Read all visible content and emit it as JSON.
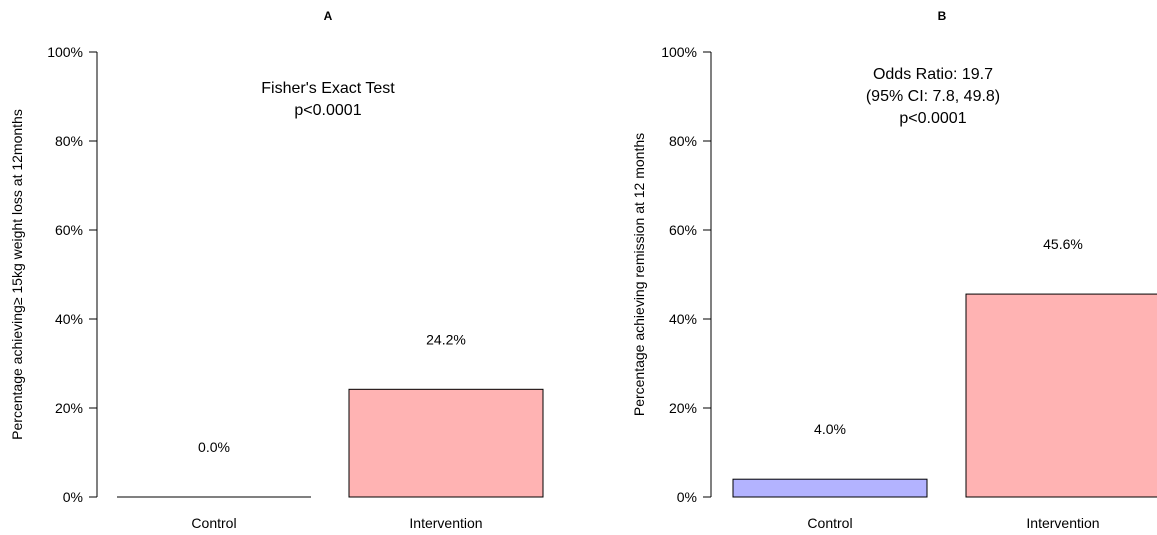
{
  "chart_data": [
    {
      "type": "bar",
      "title": "A",
      "xlabel": "",
      "ylabel": "Percentage achieving≥ 15kg weight loss at 12months",
      "categories": [
        "Control",
        "Intervention"
      ],
      "values": [
        0.0,
        24.2
      ],
      "value_labels": [
        "0.0%",
        "24.2%"
      ],
      "colors": [
        "#b3b3ff",
        "#ffb3b3"
      ],
      "ylim": [
        0,
        100
      ],
      "yticks": [
        0,
        20,
        40,
        60,
        80,
        100
      ],
      "ytick_labels": [
        "0%",
        "20%",
        "40%",
        "60%",
        "80%",
        "100%"
      ],
      "grid": false,
      "annotation": [
        "Fisher's Exact Test",
        "p<0.0001"
      ]
    },
    {
      "type": "bar",
      "title": "B",
      "xlabel": "",
      "ylabel": "Percentage achieving remission at 12 months",
      "categories": [
        "Control",
        "Intervention"
      ],
      "values": [
        4.0,
        45.6
      ],
      "value_labels": [
        "4.0%",
        "45.6%"
      ],
      "colors": [
        "#b3b3ff",
        "#ffb3b3"
      ],
      "ylim": [
        0,
        100
      ],
      "yticks": [
        0,
        20,
        40,
        60,
        80,
        100
      ],
      "ytick_labels": [
        "0%",
        "20%",
        "40%",
        "60%",
        "80%",
        "100%"
      ],
      "grid": false,
      "annotation": [
        "Odds Ratio: 19.7",
        "(95% CI: 7.8, 49.8)",
        "p<0.0001"
      ]
    }
  ]
}
